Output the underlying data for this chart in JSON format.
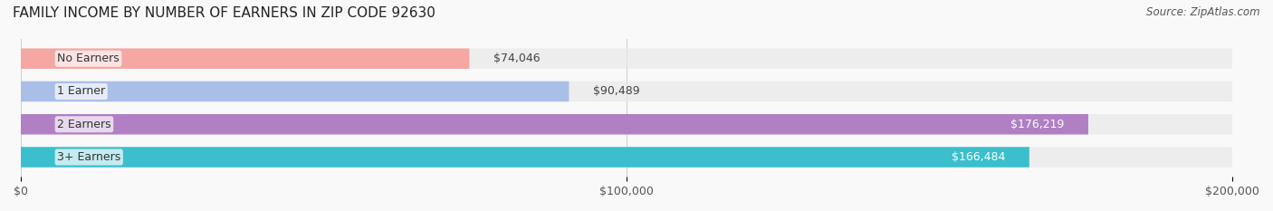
{
  "title": "FAMILY INCOME BY NUMBER OF EARNERS IN ZIP CODE 92630",
  "source": "Source: ZipAtlas.com",
  "categories": [
    "No Earners",
    "1 Earner",
    "2 Earners",
    "3+ Earners"
  ],
  "values": [
    74046,
    90489,
    176219,
    166484
  ],
  "bar_colors": [
    "#f4a7a3",
    "#aabfe8",
    "#b07fc4",
    "#3bbfcc"
  ],
  "bar_bg_color": "#f0f0f0",
  "label_colors": [
    "#333333",
    "#333333",
    "#ffffff",
    "#ffffff"
  ],
  "value_labels": [
    "$74,046",
    "$90,489",
    "$176,219",
    "$166,484"
  ],
  "xlim": [
    0,
    200000
  ],
  "xticks": [
    0,
    100000,
    200000
  ],
  "xtick_labels": [
    "$0",
    "$100,000",
    "$200,000"
  ],
  "background_color": "#f9f9f9",
  "bar_bg_alpha": 0.5,
  "title_fontsize": 11,
  "source_fontsize": 8.5,
  "label_fontsize": 9,
  "value_fontsize": 9
}
